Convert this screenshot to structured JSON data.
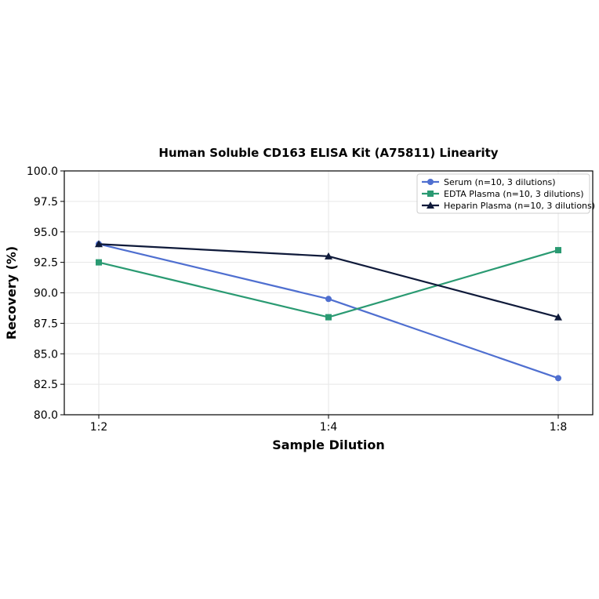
{
  "chart_data": {
    "type": "line",
    "title": "Human Soluble CD163 ELISA Kit (A75811) Linearity",
    "xlabel": "Sample Dilution",
    "ylabel": "Recovery (%)",
    "categories": [
      "1:2",
      "1:4",
      "1:8"
    ],
    "ylim": [
      80.0,
      100.0
    ],
    "yticks": [
      "80.0",
      "82.5",
      "85.0",
      "87.5",
      "90.0",
      "92.5",
      "95.0",
      "97.5",
      "100.0"
    ],
    "grid": true,
    "legend_position": "top-right",
    "series": [
      {
        "name": "Serum (n=10, 3 dilutions)",
        "values": [
          94.0,
          89.5,
          83.0
        ],
        "color": "#4f6fd0",
        "marker": "circle"
      },
      {
        "name": "EDTA Plasma (n=10, 3 dilutions)",
        "values": [
          92.5,
          88.0,
          93.5
        ],
        "color": "#2a9a72",
        "marker": "square"
      },
      {
        "name": "Heparin Plasma (n=10, 3 dilutions)",
        "values": [
          94.0,
          93.0,
          88.0
        ],
        "color": "#0f1a3a",
        "marker": "triangle"
      }
    ]
  }
}
